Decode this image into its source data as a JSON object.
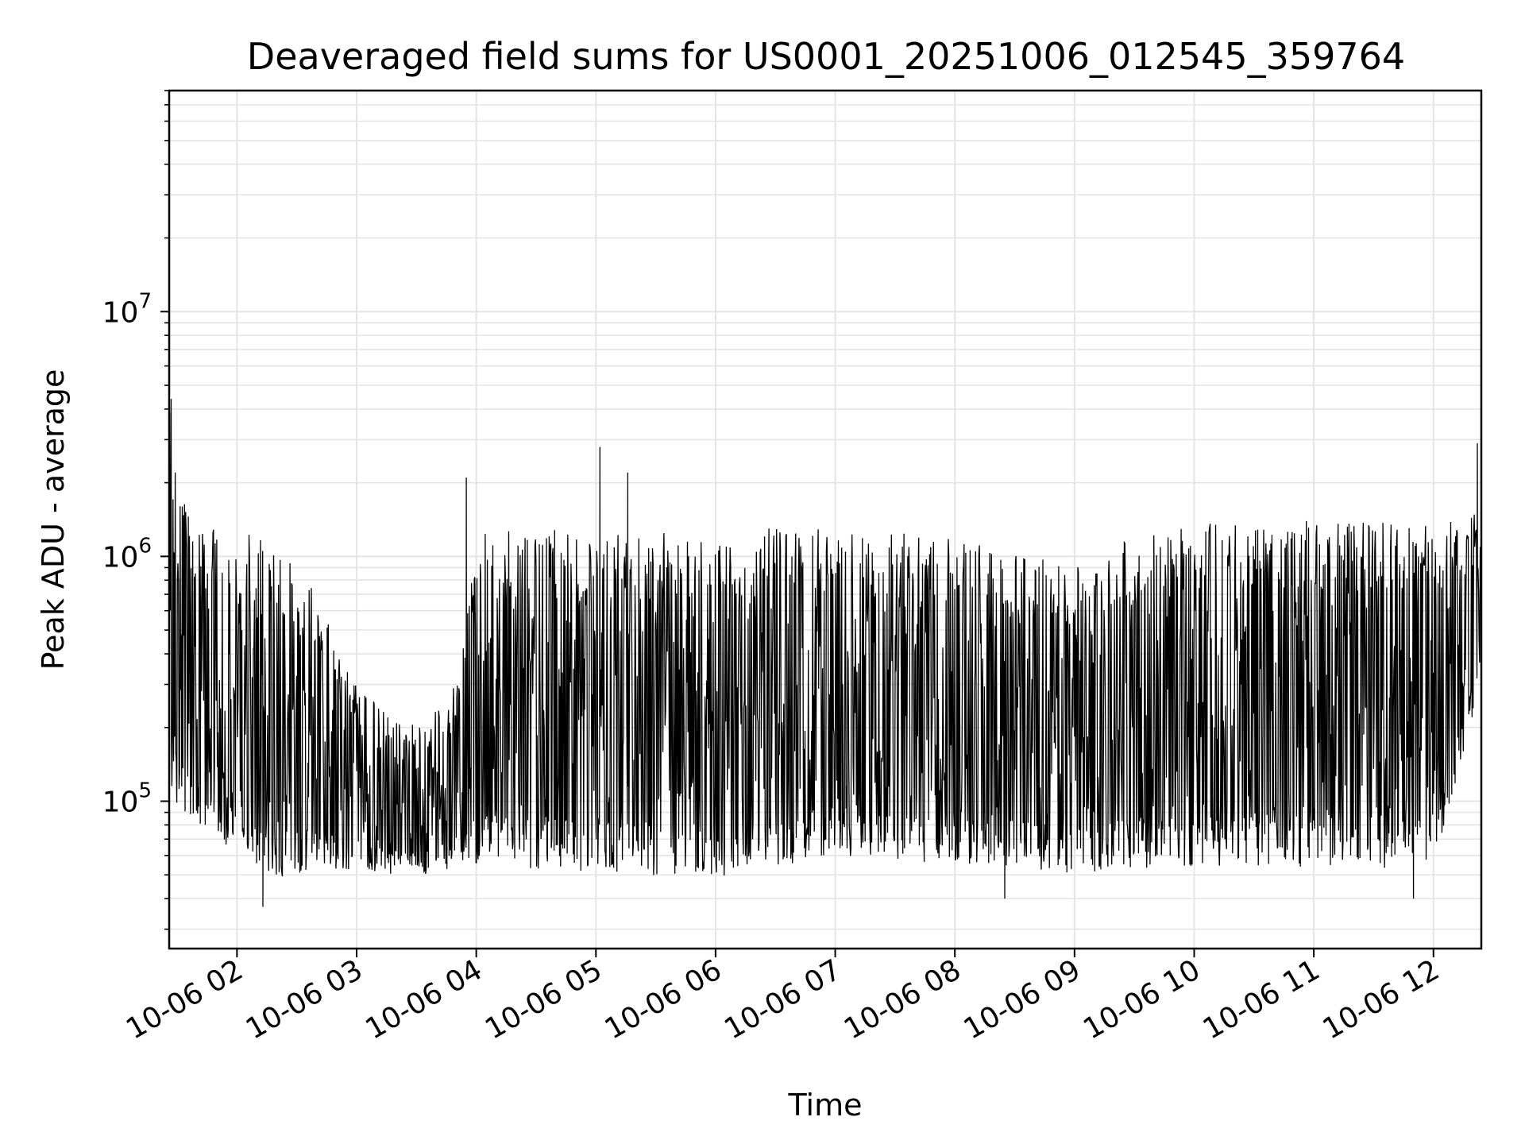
{
  "chart_data": {
    "type": "line",
    "title": "Deaveraged field sums for US0001_20251006_012545_359764",
    "xlabel": "Time",
    "ylabel": "Peak ADU - average",
    "yscale": "log",
    "ylim": [
      25000,
      80000000
    ],
    "xlim": [
      "2025-10-06 01:26",
      "2025-10-06 12:24"
    ],
    "x_ticks": [
      {
        "t": "2025-10-06 02:00",
        "label": "10-06 02"
      },
      {
        "t": "2025-10-06 03:00",
        "label": "10-06 03"
      },
      {
        "t": "2025-10-06 04:00",
        "label": "10-06 04"
      },
      {
        "t": "2025-10-06 05:00",
        "label": "10-06 05"
      },
      {
        "t": "2025-10-06 06:00",
        "label": "10-06 06"
      },
      {
        "t": "2025-10-06 07:00",
        "label": "10-06 07"
      },
      {
        "t": "2025-10-06 08:00",
        "label": "10-06 08"
      },
      {
        "t": "2025-10-06 09:00",
        "label": "10-06 09"
      },
      {
        "t": "2025-10-06 10:00",
        "label": "10-06 10"
      },
      {
        "t": "2025-10-06 11:00",
        "label": "10-06 11"
      },
      {
        "t": "2025-10-06 12:00",
        "label": "10-06 12"
      }
    ],
    "y_ticks": [
      {
        "value": 100000,
        "base": "10",
        "exp": "5"
      },
      {
        "value": 1000000,
        "base": "10",
        "exp": "6"
      },
      {
        "value": 10000000,
        "base": "10",
        "exp": "7"
      }
    ],
    "grid": true,
    "line_color": "#000000",
    "series_envelope": [
      {
        "t": "2025-10-06 01:26",
        "low": 100000,
        "high": 4000000
      },
      {
        "t": "2025-10-06 01:40",
        "low": 70000,
        "high": 1300000
      },
      {
        "t": "2025-10-06 02:00",
        "low": 60000,
        "high": 1300000
      },
      {
        "t": "2025-10-06 02:20",
        "low": 45000,
        "high": 1100000
      },
      {
        "t": "2025-10-06 02:40",
        "low": 50000,
        "high": 700000
      },
      {
        "t": "2025-10-06 03:00",
        "low": 50000,
        "high": 300000
      },
      {
        "t": "2025-10-06 03:30",
        "low": 48000,
        "high": 200000
      },
      {
        "t": "2025-10-06 03:50",
        "low": 52000,
        "high": 300000
      },
      {
        "t": "2025-10-06 04:00",
        "low": 50000,
        "high": 1300000
      },
      {
        "t": "2025-10-06 05:00",
        "low": 48000,
        "high": 1300000
      },
      {
        "t": "2025-10-06 06:00",
        "low": 45000,
        "high": 1300000
      },
      {
        "t": "2025-10-06 07:00",
        "low": 55000,
        "high": 1300000
      },
      {
        "t": "2025-10-06 08:00",
        "low": 52000,
        "high": 1200000
      },
      {
        "t": "2025-10-06 09:00",
        "low": 48000,
        "high": 900000
      },
      {
        "t": "2025-10-06 09:30",
        "low": 50000,
        "high": 1200000
      },
      {
        "t": "2025-10-06 10:00",
        "low": 50000,
        "high": 1400000
      },
      {
        "t": "2025-10-06 11:00",
        "low": 50000,
        "high": 1400000
      },
      {
        "t": "2025-10-06 12:00",
        "low": 50000,
        "high": 1400000
      },
      {
        "t": "2025-10-06 12:24",
        "low": 300000,
        "high": 1500000
      }
    ],
    "peaks": [
      {
        "t": "2025-10-06 01:27",
        "value": 4400000
      },
      {
        "t": "2025-10-06 03:55",
        "value": 2100000
      },
      {
        "t": "2025-10-06 05:02",
        "value": 2800000
      },
      {
        "t": "2025-10-06 05:16",
        "value": 2200000
      },
      {
        "t": "2025-10-06 12:22",
        "value": 2900000
      }
    ],
    "troughs": [
      {
        "t": "2025-10-06 02:13",
        "value": 37000
      },
      {
        "t": "2025-10-06 08:25",
        "value": 40000
      },
      {
        "t": "2025-10-06 11:50",
        "value": 40000
      }
    ]
  }
}
